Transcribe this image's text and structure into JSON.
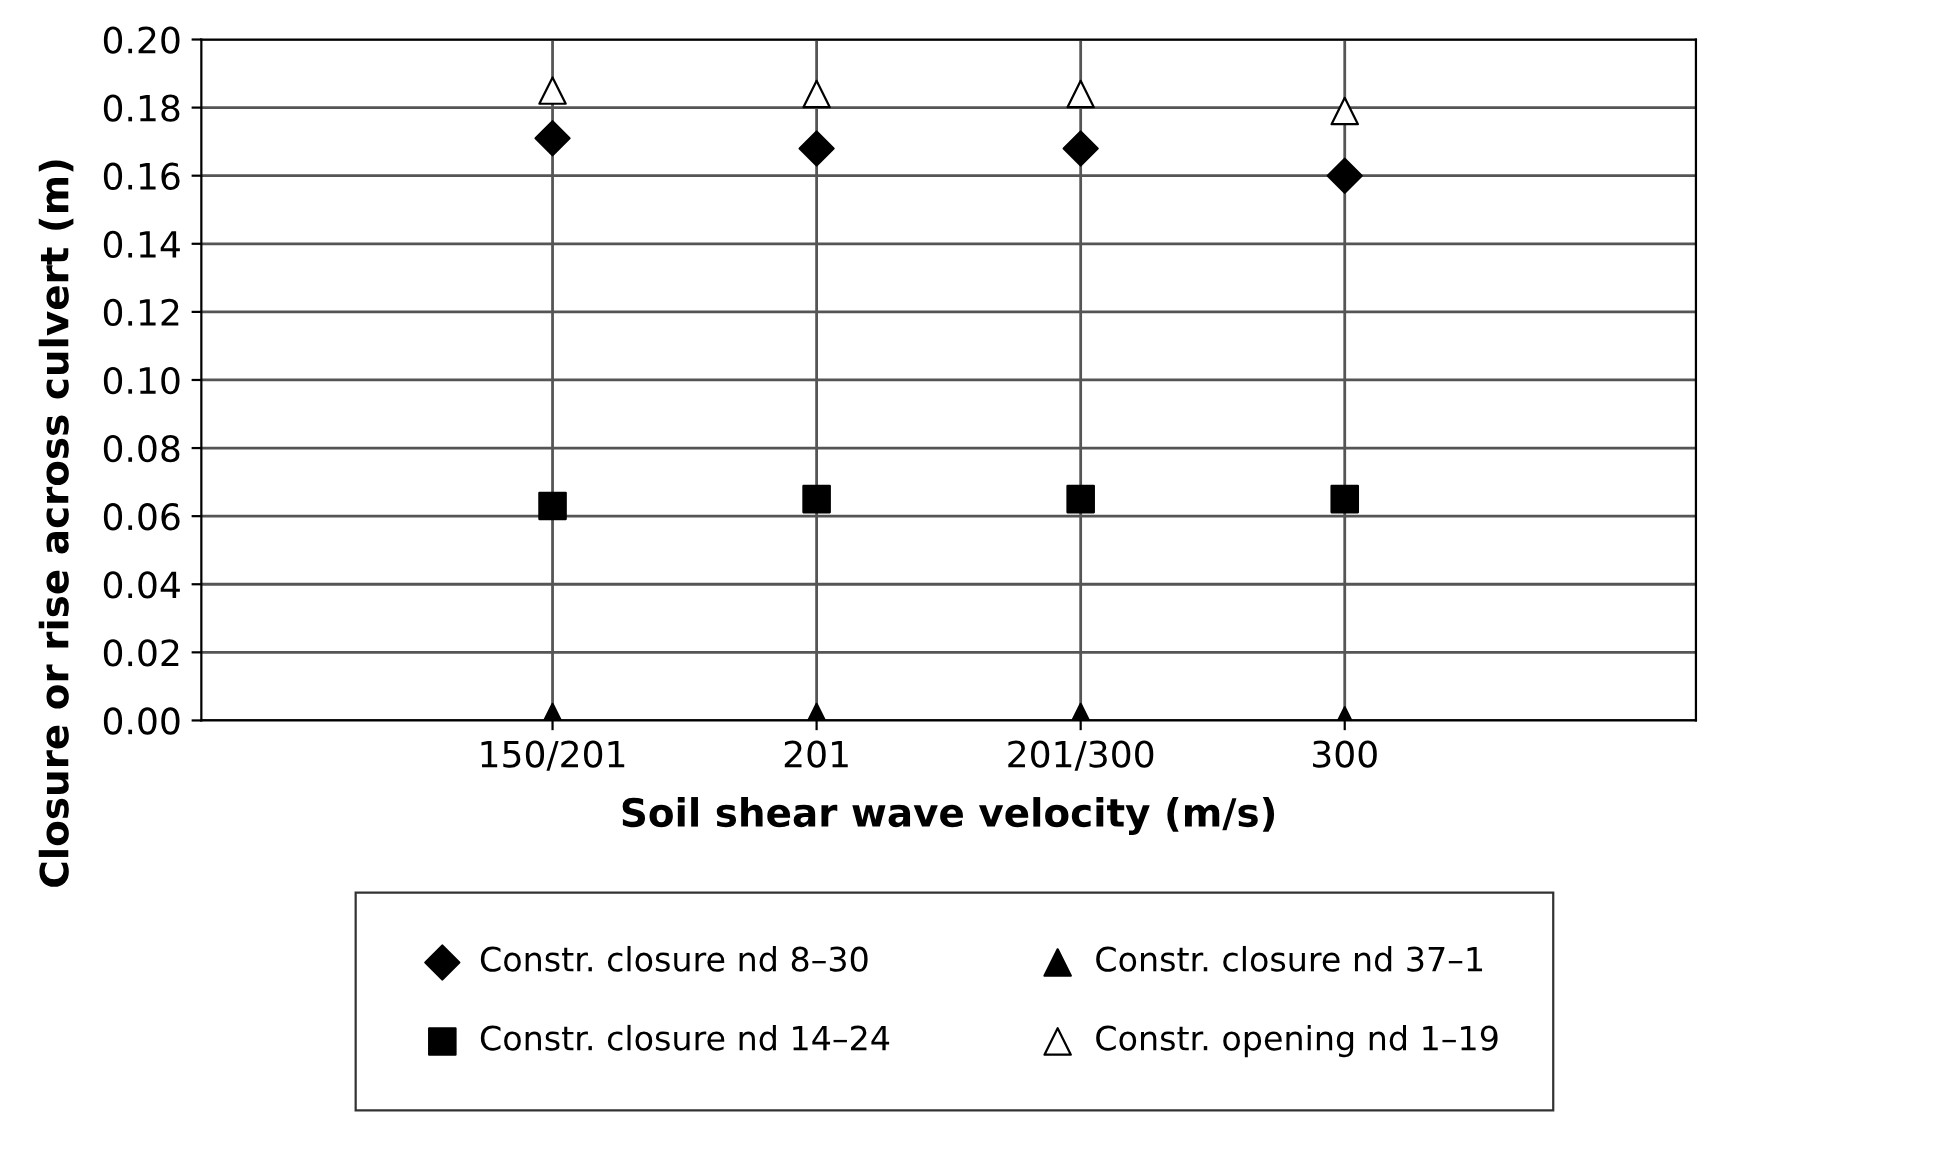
{
  "chart_data": {
    "type": "scatter",
    "xlabel": "Soil shear wave velocity (m/s)",
    "ylabel": "Closure or rise across culvert (m)",
    "categories": [
      "150/201",
      "201",
      "201/300",
      "300"
    ],
    "series": [
      {
        "name": "Constr. closure nd 8–30",
        "color": "#000000",
        "marker": "diamond",
        "values": [
          0.171,
          0.168,
          0.168,
          0.16
        ]
      },
      {
        "name": "Constr. closure nd 14–24",
        "color": "#000000",
        "marker": "square",
        "values": [
          0.063,
          0.065,
          0.065,
          0.065
        ]
      },
      {
        "name": "Constr. closure nd 37–1",
        "color": "#000000",
        "marker": "triangle",
        "values": [
          0.001,
          0.001,
          0.001,
          0.0
        ]
      },
      {
        "name": "Constr. opening nd 1–19",
        "color": "#000000",
        "marker": "triangle_open",
        "values": [
          0.185,
          0.184,
          0.184,
          0.179
        ]
      }
    ],
    "ylim": [
      0,
      0.2
    ],
    "yticks": [
      {
        "value": 0,
        "label": "0.00"
      },
      {
        "value": 0.02,
        "label": "0.02"
      },
      {
        "value": 0.04,
        "label": "0.04"
      },
      {
        "value": 0.06,
        "label": "0.06"
      },
      {
        "value": 0.08,
        "label": "0.08"
      },
      {
        "value": 0.1,
        "label": "0.10"
      },
      {
        "value": 0.12,
        "label": "0.12"
      },
      {
        "value": 0.14,
        "label": "0.14"
      },
      {
        "value": 0.16,
        "label": "0.16"
      },
      {
        "value": 0.18,
        "label": "0.18"
      },
      {
        "value": 0.2,
        "label": "0.20"
      }
    ],
    "grid": true,
    "legend": "bottom"
  }
}
